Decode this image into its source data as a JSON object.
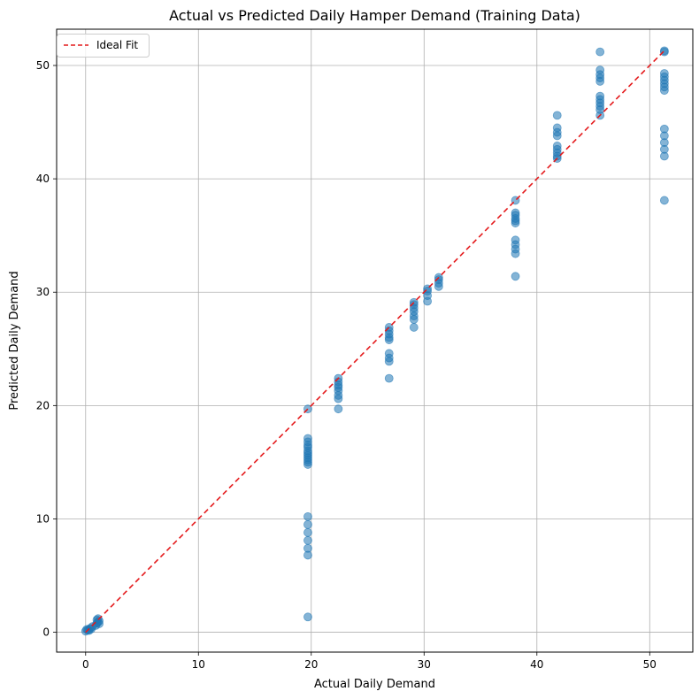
{
  "chart_data": {
    "type": "scatter",
    "title": "Actual vs Predicted Daily Hamper Demand (Training Data)",
    "xlabel": "Actual Daily Demand",
    "ylabel": "Predicted Daily Demand",
    "xlim": [
      -2.57,
      53.82
    ],
    "ylim": [
      -1.75,
      53.2
    ],
    "xticks": [
      0,
      10,
      20,
      30,
      40,
      50
    ],
    "yticks": [
      0,
      10,
      20,
      30,
      40,
      50
    ],
    "grid": true,
    "legend_position": "top-left",
    "colors": {
      "points": "#1f77b4",
      "ideal_line": "#e41a1c",
      "grid": "#b0b0b0"
    },
    "ideal_fit": {
      "name": "Ideal Fit",
      "x": [
        0,
        51.3
      ],
      "y": [
        0,
        51.3
      ]
    },
    "points": [
      [
        0,
        0.1
      ],
      [
        0.2,
        0.2
      ],
      [
        0.4,
        0.35
      ],
      [
        0.6,
        0.5
      ],
      [
        0.5,
        0.3
      ],
      [
        0.1,
        0.25
      ],
      [
        0.3,
        0.15
      ],
      [
        0.9,
        0.6
      ],
      [
        1.0,
        0.8
      ],
      [
        1.1,
        0.9
      ],
      [
        1.2,
        1.0
      ],
      [
        1.1,
        1.2
      ],
      [
        1.0,
        1.1
      ],
      [
        1.2,
        0.75
      ],
      [
        19.7,
        19.7
      ],
      [
        19.7,
        17.1
      ],
      [
        19.7,
        16.8
      ],
      [
        19.7,
        16.5
      ],
      [
        19.7,
        16.3
      ],
      [
        19.7,
        16.0
      ],
      [
        19.7,
        15.8
      ],
      [
        19.7,
        15.6
      ],
      [
        19.7,
        15.4
      ],
      [
        19.7,
        15.2
      ],
      [
        19.7,
        15.0
      ],
      [
        19.7,
        14.8
      ],
      [
        19.7,
        10.2
      ],
      [
        19.7,
        9.5
      ],
      [
        19.7,
        8.8
      ],
      [
        19.7,
        8.1
      ],
      [
        19.7,
        7.4
      ],
      [
        19.7,
        6.8
      ],
      [
        19.7,
        1.35
      ],
      [
        22.4,
        22.4
      ],
      [
        22.4,
        22.1
      ],
      [
        22.4,
        21.8
      ],
      [
        22.4,
        21.6
      ],
      [
        22.4,
        21.3
      ],
      [
        22.4,
        20.9
      ],
      [
        22.4,
        20.6
      ],
      [
        22.4,
        19.7
      ],
      [
        26.9,
        26.9
      ],
      [
        26.9,
        26.6
      ],
      [
        26.9,
        26.3
      ],
      [
        26.9,
        26.0
      ],
      [
        26.9,
        25.8
      ],
      [
        26.9,
        24.6
      ],
      [
        26.9,
        24.2
      ],
      [
        26.9,
        23.9
      ],
      [
        26.9,
        22.4
      ],
      [
        29.1,
        29.1
      ],
      [
        29.1,
        28.9
      ],
      [
        29.1,
        28.6
      ],
      [
        29.1,
        28.3
      ],
      [
        29.1,
        27.9
      ],
      [
        29.1,
        27.6
      ],
      [
        29.1,
        26.9
      ],
      [
        30.3,
        30.3
      ],
      [
        30.3,
        30.1
      ],
      [
        30.3,
        29.7
      ],
      [
        30.3,
        29.2
      ],
      [
        31.3,
        31.3
      ],
      [
        31.3,
        31.1
      ],
      [
        31.3,
        30.8
      ],
      [
        31.3,
        30.5
      ],
      [
        38.1,
        38.1
      ],
      [
        38.1,
        37.0
      ],
      [
        38.1,
        36.8
      ],
      [
        38.1,
        36.5
      ],
      [
        38.1,
        36.3
      ],
      [
        38.1,
        36.1
      ],
      [
        38.1,
        34.6
      ],
      [
        38.1,
        34.2
      ],
      [
        38.1,
        33.8
      ],
      [
        38.1,
        33.4
      ],
      [
        38.1,
        31.4
      ],
      [
        41.8,
        41.8
      ],
      [
        41.8,
        45.6
      ],
      [
        41.8,
        44.5
      ],
      [
        41.8,
        44.1
      ],
      [
        41.8,
        43.8
      ],
      [
        41.8,
        42.9
      ],
      [
        41.8,
        42.6
      ],
      [
        41.8,
        42.3
      ],
      [
        41.8,
        42.0
      ],
      [
        45.6,
        45.6
      ],
      [
        45.6,
        51.2
      ],
      [
        45.6,
        49.6
      ],
      [
        45.6,
        49.2
      ],
      [
        45.6,
        48.9
      ],
      [
        45.6,
        48.6
      ],
      [
        45.6,
        47.3
      ],
      [
        45.6,
        47.0
      ],
      [
        45.6,
        46.7
      ],
      [
        45.6,
        46.4
      ],
      [
        45.6,
        46.1
      ],
      [
        51.3,
        51.3
      ],
      [
        51.3,
        51.2
      ],
      [
        51.3,
        49.3
      ],
      [
        51.3,
        49.0
      ],
      [
        51.3,
        48.7
      ],
      [
        51.3,
        48.4
      ],
      [
        51.3,
        48.1
      ],
      [
        51.3,
        47.8
      ],
      [
        51.3,
        44.4
      ],
      [
        51.3,
        43.8
      ],
      [
        51.3,
        43.2
      ],
      [
        51.3,
        42.6
      ],
      [
        51.3,
        42.0
      ],
      [
        51.3,
        38.1
      ]
    ]
  }
}
